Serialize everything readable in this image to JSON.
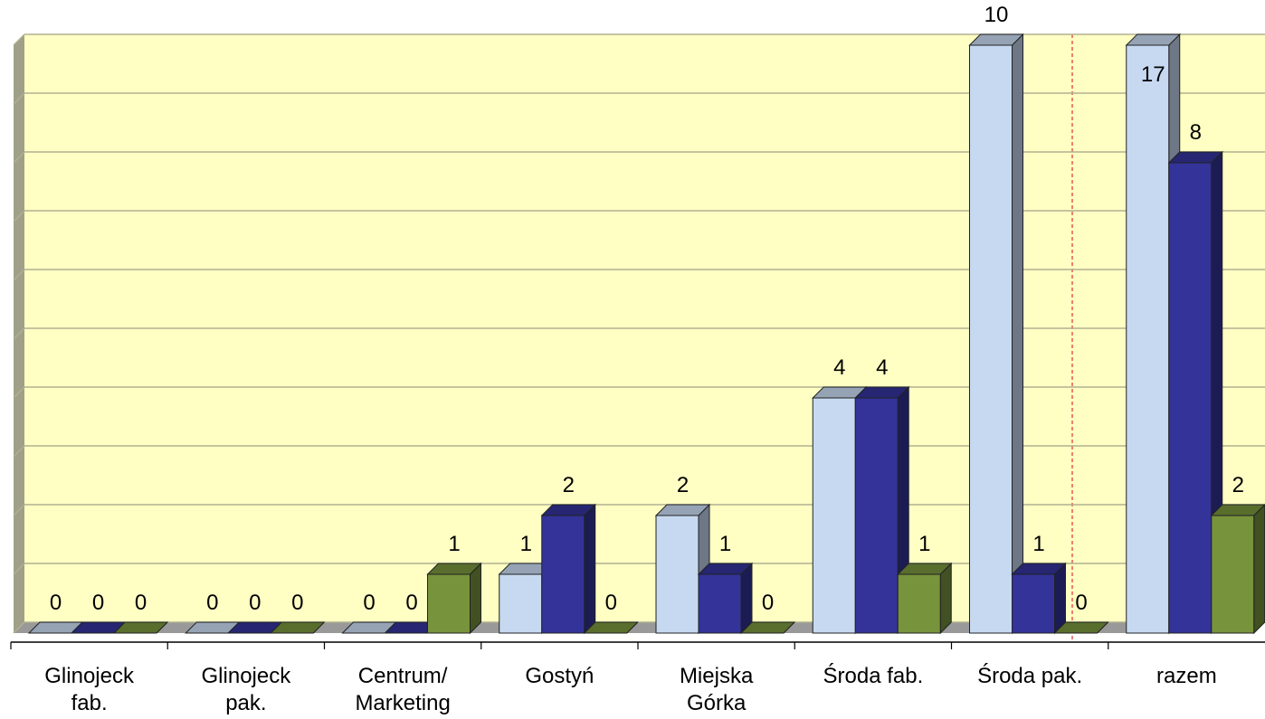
{
  "chart_data": {
    "type": "bar3d",
    "categories": [
      "Glinojeck\nfab.",
      "Glinojeck\npak.",
      "Centrum/\nMarketing",
      "Gostyń",
      "Miejska\nGórka",
      "Środa fab.",
      "Środa pak.",
      "razem"
    ],
    "series": [
      {
        "color": "#c6d9f1",
        "values": [
          0,
          0,
          0,
          1,
          2,
          4,
          10,
          17
        ]
      },
      {
        "color": "#333399",
        "values": [
          0,
          0,
          0,
          2,
          1,
          4,
          1,
          8
        ]
      },
      {
        "color": "#77933c",
        "values": [
          0,
          0,
          1,
          0,
          0,
          1,
          0,
          2
        ]
      }
    ],
    "ylim": [
      0,
      10
    ],
    "yticks": [
      0,
      1,
      2,
      3,
      4,
      5,
      6,
      7,
      8,
      9,
      10
    ],
    "grid": true
  }
}
